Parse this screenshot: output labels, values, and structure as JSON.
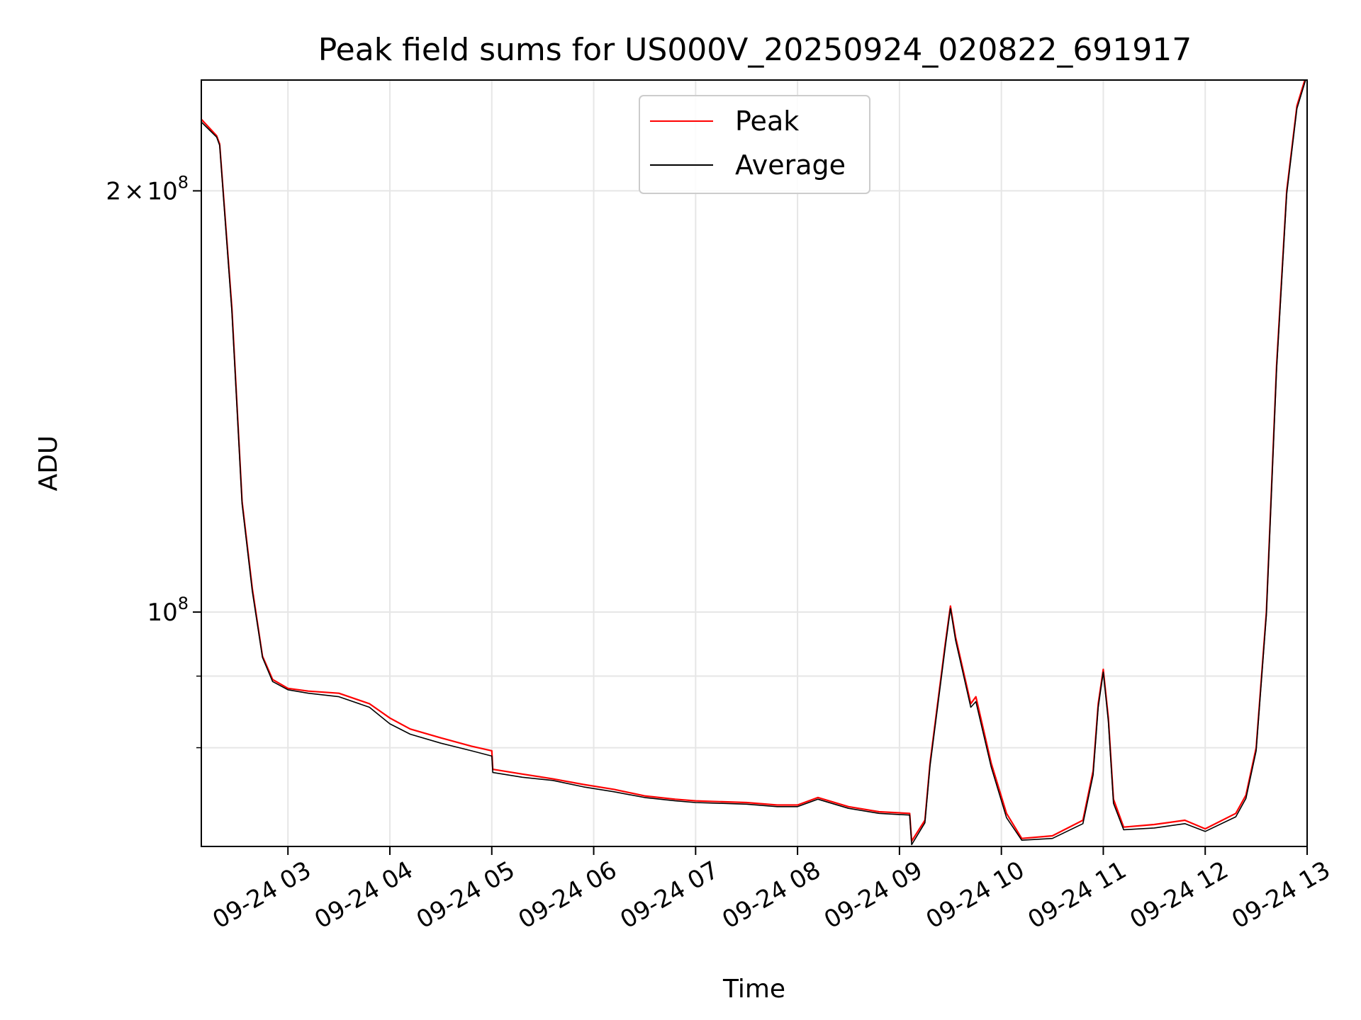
{
  "chart_data": {
    "type": "line",
    "title": "Peak field sums for US000V_20250924_020822_691917",
    "xlabel": "Time",
    "ylabel": "ADU",
    "yscale": "log",
    "xlim": [
      2.15,
      13.0
    ],
    "ylim": [
      68000000,
      240000000
    ],
    "grid": true,
    "legend_position": "upper center",
    "x_ticks": [
      {
        "value": 3,
        "label": "09-24 03"
      },
      {
        "value": 4,
        "label": "09-24 04"
      },
      {
        "value": 5,
        "label": "09-24 05"
      },
      {
        "value": 6,
        "label": "09-24 06"
      },
      {
        "value": 7,
        "label": "09-24 07"
      },
      {
        "value": 8,
        "label": "09-24 08"
      },
      {
        "value": 9,
        "label": "09-24 09"
      },
      {
        "value": 10,
        "label": "09-24 10"
      },
      {
        "value": 11,
        "label": "09-24 11"
      },
      {
        "value": 12,
        "label": "09-24 12"
      },
      {
        "value": 13,
        "label": "09-24 13"
      }
    ],
    "y_major_ticks": [
      {
        "value": 100000000,
        "base": "10",
        "exp": "8",
        "label": "10^8"
      },
      {
        "value": 200000000,
        "coef": "2",
        "base": "10",
        "exp": "8",
        "label": "2×10^8"
      }
    ],
    "y_minor_ticks": [
      90000000,
      80000000
    ],
    "series": [
      {
        "name": "Peak",
        "color": "#ff0000",
        "x": [
          2.15,
          2.3,
          2.33,
          2.45,
          2.55,
          2.65,
          2.75,
          2.85,
          3.0,
          3.2,
          3.5,
          3.8,
          4.0,
          4.2,
          4.5,
          4.8,
          5.0,
          5.01,
          5.3,
          5.6,
          5.9,
          6.2,
          6.5,
          6.8,
          7.0,
          7.5,
          7.8,
          8.0,
          8.2,
          8.5,
          8.8,
          9.1,
          9.12,
          9.25,
          9.3,
          9.45,
          9.5,
          9.55,
          9.7,
          9.75,
          9.9,
          10.05,
          10.2,
          10.5,
          10.8,
          10.9,
          10.95,
          11.0,
          11.05,
          11.1,
          11.2,
          11.5,
          11.8,
          12.0,
          12.3,
          12.4,
          12.5,
          12.6,
          12.7,
          12.8,
          12.9,
          13.0
        ],
        "y": [
          225000000,
          219000000,
          216000000,
          165000000,
          120000000,
          104000000,
          93000000,
          89500000,
          88200000,
          87800000,
          87500000,
          86000000,
          84000000,
          82500000,
          81300000,
          80200000,
          79600000,
          77200000,
          76600000,
          76000000,
          75300000,
          74700000,
          73900000,
          73500000,
          73300000,
          73100000,
          72800000,
          72800000,
          73700000,
          72600000,
          72000000,
          71800000,
          68600000,
          71000000,
          78000000,
          95000000,
          101000000,
          96000000,
          86000000,
          87000000,
          78000000,
          71800000,
          68900000,
          69200000,
          71000000,
          77000000,
          86000000,
          91000000,
          84000000,
          73500000,
          70200000,
          70500000,
          71000000,
          70000000,
          71800000,
          74000000,
          80000000,
          100000000,
          150000000,
          200000000,
          230000000,
          243000000
        ]
      },
      {
        "name": "Average",
        "color": "#000000",
        "x": [
          2.15,
          2.3,
          2.33,
          2.45,
          2.55,
          2.65,
          2.75,
          2.85,
          3.0,
          3.2,
          3.5,
          3.8,
          4.0,
          4.2,
          4.5,
          4.8,
          5.0,
          5.01,
          5.3,
          5.6,
          5.9,
          6.2,
          6.5,
          6.8,
          7.0,
          7.5,
          7.8,
          8.0,
          8.2,
          8.5,
          8.8,
          9.1,
          9.12,
          9.25,
          9.3,
          9.45,
          9.5,
          9.55,
          9.7,
          9.75,
          9.9,
          10.05,
          10.2,
          10.5,
          10.8,
          10.9,
          10.95,
          11.0,
          11.05,
          11.1,
          11.2,
          11.5,
          11.8,
          12.0,
          12.3,
          12.4,
          12.5,
          12.6,
          12.7,
          12.8,
          12.9,
          13.0
        ],
        "y": [
          224000000,
          218500000,
          215500000,
          164000000,
          119500000,
          103500000,
          92800000,
          89200000,
          88000000,
          87500000,
          87000000,
          85500000,
          83200000,
          81800000,
          80600000,
          79600000,
          78900000,
          76800000,
          76200000,
          75800000,
          75000000,
          74400000,
          73700000,
          73300000,
          73100000,
          72900000,
          72600000,
          72600000,
          73500000,
          72400000,
          71800000,
          71600000,
          68200000,
          70700000,
          77600000,
          94500000,
          100600000,
          95500000,
          85500000,
          86300000,
          77500000,
          71300000,
          68700000,
          68900000,
          70600000,
          76500000,
          85500000,
          90600000,
          83500000,
          73000000,
          69900000,
          70100000,
          70600000,
          69700000,
          71400000,
          73600000,
          79600000,
          99500000,
          149000000,
          199000000,
          229000000,
          242000000
        ]
      }
    ]
  }
}
